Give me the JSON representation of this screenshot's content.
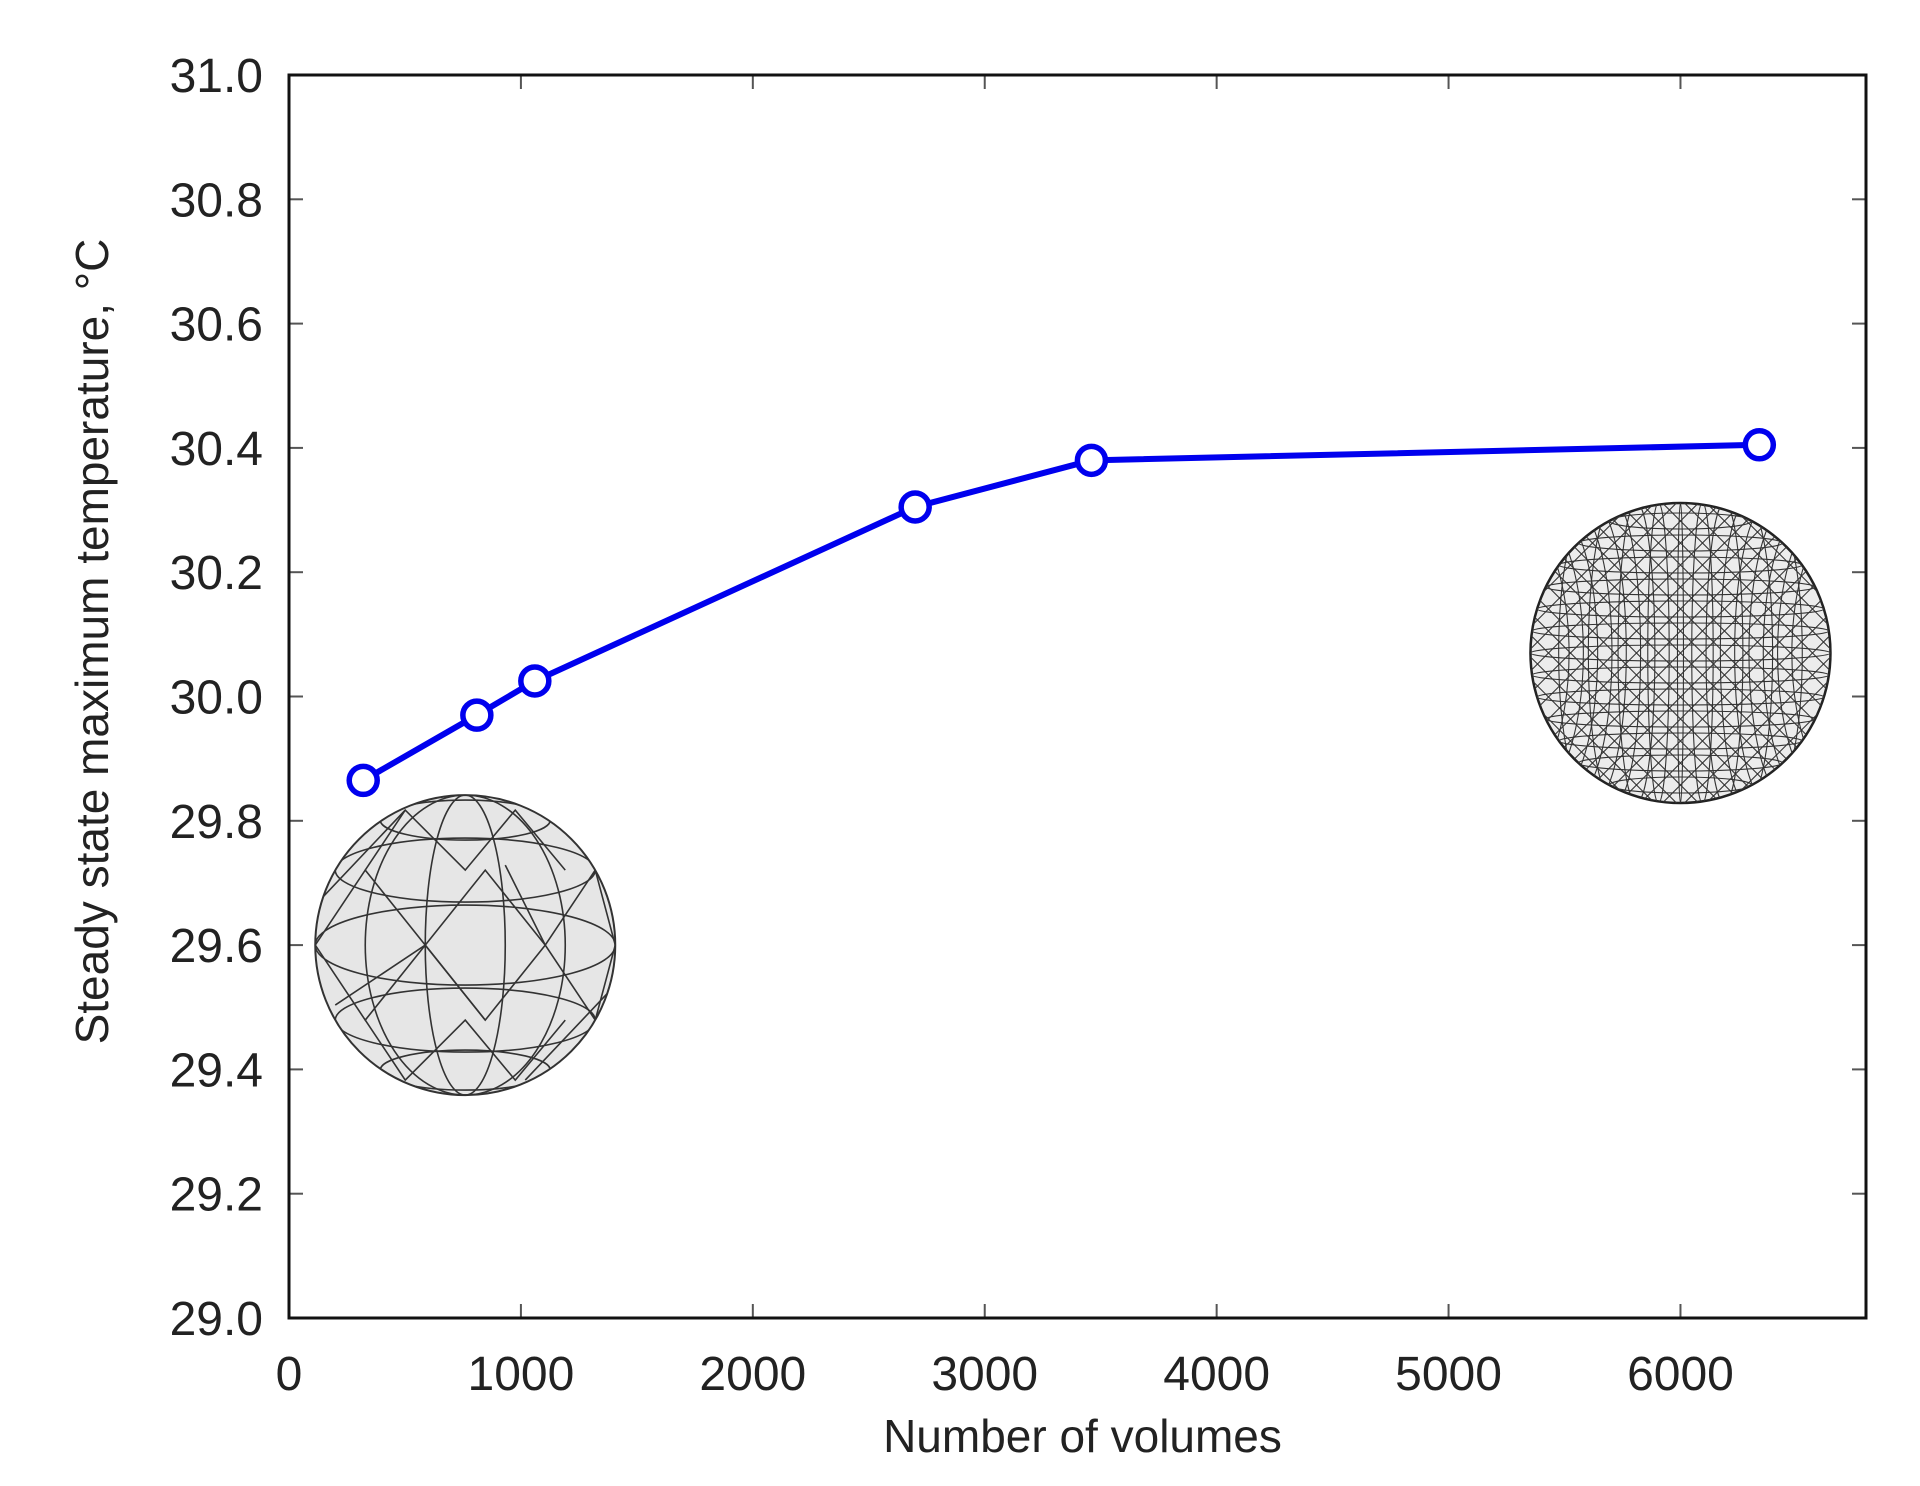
{
  "chart_data": {
    "type": "line",
    "title": "",
    "xlabel": "Number of volumes",
    "ylabel": "Steady state maximum temperature, °C",
    "xlim": [
      0,
      6800
    ],
    "ylim": [
      29.0,
      31.0
    ],
    "x_ticks": [
      0,
      1000,
      2000,
      3000,
      4000,
      5000,
      6000
    ],
    "x_tick_labels": [
      "0",
      "1000",
      "2000",
      "3000",
      "4000",
      "5000",
      "6000"
    ],
    "y_ticks": [
      29.0,
      29.2,
      29.4,
      29.6,
      29.8,
      30.0,
      30.2,
      30.4,
      30.6,
      30.8,
      31.0
    ],
    "y_tick_labels": [
      "29.0",
      "29.2",
      "29.4",
      "29.6",
      "29.8",
      "30.0",
      "30.2",
      "30.4",
      "30.6",
      "30.8",
      "31.0"
    ],
    "grid": false,
    "series": [
      {
        "color": "#0000ee",
        "marker": "open-circle",
        "x": [
          320,
          810,
          1060,
          2700,
          3460,
          6340
        ],
        "y": [
          29.865,
          29.97,
          30.025,
          30.305,
          30.38,
          30.405
        ]
      }
    ],
    "annotations": [
      {
        "type": "image",
        "icon": "coarse-mesh-sphere-icon",
        "x": 760,
        "y": 29.6
      },
      {
        "type": "image",
        "icon": "fine-mesh-sphere-icon",
        "x": 6000,
        "y": 30.07
      }
    ]
  }
}
